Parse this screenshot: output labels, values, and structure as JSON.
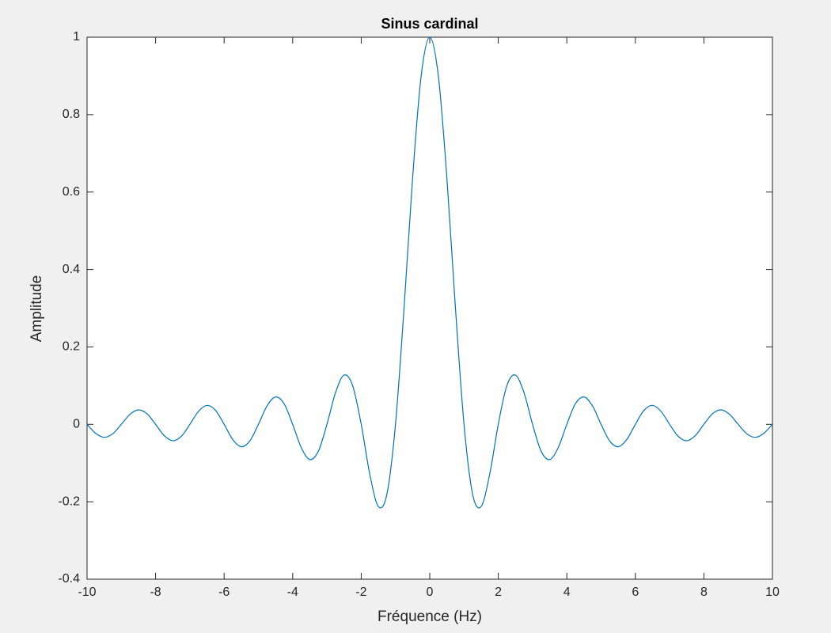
{
  "chart_data": {
    "type": "line",
    "title": "Sinus cardinal",
    "x_label": "Fréquence (Hz)",
    "y_label": "Amplitude",
    "x": [
      -10,
      -9.75,
      -9.5,
      -9.25,
      -9,
      -8.75,
      -8.5,
      -8.25,
      -8,
      -7.75,
      -7.5,
      -7.25,
      -7,
      -6.75,
      -6.5,
      -6.25,
      -6,
      -5.75,
      -5.5,
      -5.25,
      -5,
      -4.75,
      -4.5,
      -4.25,
      -4,
      -3.75,
      -3.5,
      -3.25,
      -3,
      -2.75,
      -2.5,
      -2.25,
      -2,
      -1.75,
      -1.5,
      -1.25,
      -1,
      -0.75,
      -0.5,
      -0.25,
      0,
      0.25,
      0.5,
      0.75,
      1,
      1.25,
      1.5,
      1.75,
      2,
      2.25,
      2.5,
      2.75,
      3,
      3.25,
      3.5,
      3.75,
      4,
      4.25,
      4.5,
      4.75,
      5,
      5.25,
      5.5,
      5.75,
      6,
      6.25,
      6.5,
      6.75,
      7,
      7.25,
      7.5,
      7.75,
      8,
      8.25,
      8.5,
      8.75,
      9,
      9.25,
      9.5,
      9.75,
      10
    ],
    "series": [
      {
        "color": "#0072bd",
        "values": [
          0,
          -0.0231,
          -0.0335,
          -0.0243,
          0,
          0.0257,
          0.0374,
          0.0273,
          0,
          -0.029,
          -0.0424,
          -0.031,
          0,
          0.0333,
          0.049,
          0.036,
          0,
          -0.0391,
          -0.0579,
          -0.0429,
          0,
          0.0474,
          0.0707,
          0.053,
          0,
          -0.06,
          -0.0909,
          -0.0693,
          0,
          0.0818,
          0.1273,
          0.1,
          0,
          -0.1286,
          -0.2122,
          -0.1801,
          0,
          0.3001,
          0.6366,
          0.9003,
          1,
          0.9003,
          0.6366,
          0.3001,
          0,
          -0.1801,
          -0.2122,
          -0.1286,
          0,
          0.1,
          0.1273,
          0.0818,
          0,
          -0.0693,
          -0.0909,
          -0.06,
          0,
          0.053,
          0.0707,
          0.0474,
          0,
          -0.0429,
          -0.0579,
          -0.0391,
          0,
          0.036,
          0.049,
          0.0333,
          0,
          -0.031,
          -0.0424,
          -0.029,
          0,
          0.0273,
          0.0374,
          0.0257,
          0,
          -0.0243,
          -0.0335,
          -0.0231,
          0
        ]
      }
    ],
    "xlim": [
      -10,
      10
    ],
    "ylim": [
      -0.4,
      1
    ],
    "xticks": [
      -10,
      -8,
      -6,
      -4,
      -2,
      0,
      2,
      4,
      6,
      8,
      10
    ],
    "yticks": [
      -0.4,
      -0.2,
      0,
      0.2,
      0.4,
      0.6,
      0.8,
      1
    ],
    "grid": false
  }
}
